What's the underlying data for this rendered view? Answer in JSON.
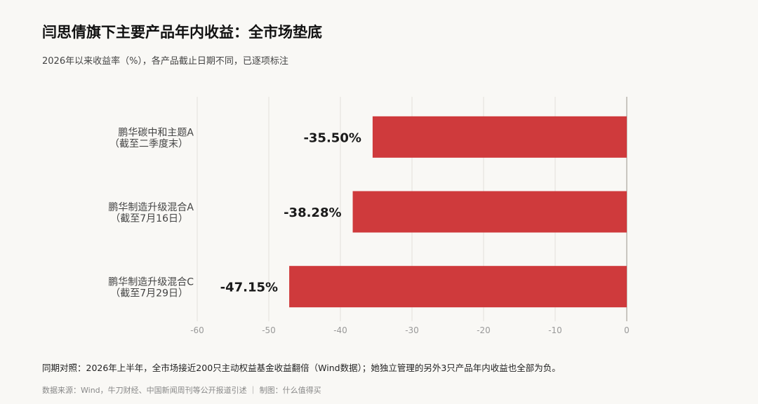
{
  "header": {
    "title": "闫思倩旗下主要产品年内收益：全市场垫底",
    "subtitle": "2026年以来收益率（%），各产品截止日期不同，已逐项标注"
  },
  "chart_data": {
    "type": "bar",
    "orientation": "horizontal",
    "categories": [
      {
        "name": "鹏华碳中和主题A",
        "note": "（截至二季度末）"
      },
      {
        "name": "鹏华制造升级混合A",
        "note": "（截至7月16日）"
      },
      {
        "name": "鹏华制造升级混合C",
        "note": "（截至7月29日）"
      }
    ],
    "values": [
      -35.5,
      -38.28,
      -47.15
    ],
    "value_labels": [
      "-35.50%",
      "-38.28%",
      "-47.15%"
    ],
    "xlim": [
      -60,
      0
    ],
    "xticks": [
      -60,
      -50,
      -40,
      -30,
      -20,
      -10,
      0
    ],
    "grid": true,
    "bar_color": "#cf3a3c"
  },
  "footer": {
    "note": "同期对照：2026年上半年，全市场接近200只主动权益基金收益翻倍（Wind数据）；她独立管理的另外3只产品年内收益也全部为负。",
    "source": "数据来源：Wind，牛刀财经、中国新闻周刊等公开报道引述 ｜ 制图：什么值得买"
  }
}
